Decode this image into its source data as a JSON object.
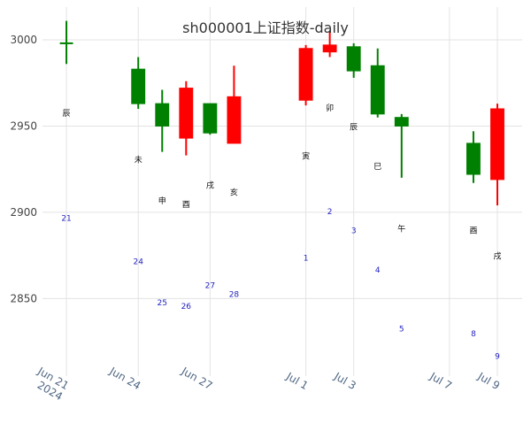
{
  "chart_data": {
    "type": "candlestick",
    "title": "sh000001上证指数-daily",
    "xlabel": "",
    "ylabel": "",
    "ylim": [
      2805,
      3019
    ],
    "y_ticks": [
      2850,
      2900,
      2950,
      3000
    ],
    "grid": true,
    "legend": "none",
    "colors": {
      "increasing": "#ff0000",
      "decreasing": "#008000",
      "grid": "#e3e3e3"
    },
    "x_range": [
      "2024-06-20",
      "2024-07-09"
    ],
    "x_ticks": [
      {
        "date": "2024-06-21",
        "label": "Jun 21",
        "sublabel": "2024"
      },
      {
        "date": "2024-06-24",
        "label": "Jun 24",
        "sublabel": ""
      },
      {
        "date": "2024-06-27",
        "label": "Jun 27",
        "sublabel": ""
      },
      {
        "date": "2024-07-01",
        "label": "Jul 1",
        "sublabel": ""
      },
      {
        "date": "2024-07-03",
        "label": "Jul 3",
        "sublabel": ""
      },
      {
        "date": "2024-07-07",
        "label": "Jul 7",
        "sublabel": ""
      },
      {
        "date": "2024-07-09",
        "label": "Jul 9",
        "sublabel": ""
      }
    ],
    "candles": [
      {
        "date": "2024-06-21",
        "open": 2998,
        "high": 3011,
        "low": 2986,
        "close": 2998
      },
      {
        "date": "2024-06-24",
        "open": 2983,
        "high": 2990,
        "low": 2960,
        "close": 2963
      },
      {
        "date": "2024-06-25",
        "open": 2963,
        "high": 2971,
        "low": 2935,
        "close": 2950
      },
      {
        "date": "2024-06-26",
        "open": 2943,
        "high": 2976,
        "low": 2933,
        "close": 2972
      },
      {
        "date": "2024-06-27",
        "open": 2963,
        "high": 2963,
        "low": 2945,
        "close": 2946
      },
      {
        "date": "2024-06-28",
        "open": 2940,
        "high": 2985,
        "low": 2940,
        "close": 2967
      },
      {
        "date": "2024-07-01",
        "open": 2965,
        "high": 2997,
        "low": 2962,
        "close": 2995
      },
      {
        "date": "2024-07-02",
        "open": 2993,
        "high": 3005,
        "low": 2990,
        "close": 2997
      },
      {
        "date": "2024-07-03",
        "open": 2996,
        "high": 2998,
        "low": 2978,
        "close": 2982
      },
      {
        "date": "2024-07-04",
        "open": 2985,
        "high": 2995,
        "low": 2955,
        "close": 2957
      },
      {
        "date": "2024-07-05",
        "open": 2955,
        "high": 2957,
        "low": 2920,
        "close": 2950
      },
      {
        "date": "2024-07-08",
        "open": 2940,
        "high": 2947,
        "low": 2917,
        "close": 2922
      },
      {
        "date": "2024-07-09",
        "open": 2919,
        "high": 2963,
        "low": 2904,
        "close": 2960
      }
    ],
    "annotations_zodiac": [
      {
        "date": "2024-06-21",
        "y": 2956,
        "text": "辰"
      },
      {
        "date": "2024-06-24",
        "y": 2929,
        "text": "未"
      },
      {
        "date": "2024-06-25",
        "y": 2905,
        "text": "申"
      },
      {
        "date": "2024-06-26",
        "y": 2903,
        "text": "酉"
      },
      {
        "date": "2024-06-27",
        "y": 2914,
        "text": "戌"
      },
      {
        "date": "2024-06-28",
        "y": 2910,
        "text": "亥"
      },
      {
        "date": "2024-07-01",
        "y": 2931,
        "text": "寅"
      },
      {
        "date": "2024-07-02",
        "y": 2959,
        "text": "卯"
      },
      {
        "date": "2024-07-03",
        "y": 2948,
        "text": "辰"
      },
      {
        "date": "2024-07-04",
        "y": 2925,
        "text": "巳"
      },
      {
        "date": "2024-07-05",
        "y": 2889,
        "text": "午"
      },
      {
        "date": "2024-07-08",
        "y": 2888,
        "text": "酉"
      },
      {
        "date": "2024-07-09",
        "y": 2873,
        "text": "戌"
      }
    ],
    "annotations_day": [
      {
        "date": "2024-06-21",
        "y": 2895,
        "text": "21"
      },
      {
        "date": "2024-06-24",
        "y": 2870,
        "text": "24"
      },
      {
        "date": "2024-06-25",
        "y": 2846,
        "text": "25"
      },
      {
        "date": "2024-06-26",
        "y": 2844,
        "text": "26"
      },
      {
        "date": "2024-06-27",
        "y": 2856,
        "text": "27"
      },
      {
        "date": "2024-06-28",
        "y": 2851,
        "text": "28"
      },
      {
        "date": "2024-07-01",
        "y": 2872,
        "text": "1"
      },
      {
        "date": "2024-07-02",
        "y": 2899,
        "text": "2"
      },
      {
        "date": "2024-07-03",
        "y": 2888,
        "text": "3"
      },
      {
        "date": "2024-07-04",
        "y": 2865,
        "text": "4"
      },
      {
        "date": "2024-07-05",
        "y": 2831,
        "text": "5"
      },
      {
        "date": "2024-07-08",
        "y": 2828,
        "text": "8"
      },
      {
        "date": "2024-07-09",
        "y": 2815,
        "text": "9"
      }
    ]
  }
}
